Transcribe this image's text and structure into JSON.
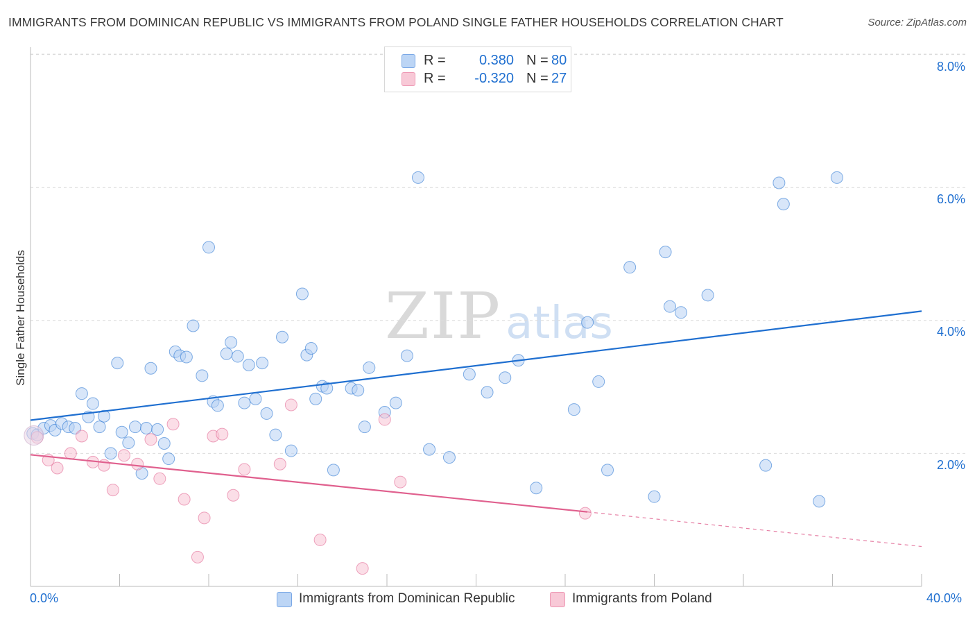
{
  "title": "IMMIGRANTS FROM DOMINICAN REPUBLIC VS IMMIGRANTS FROM POLAND SINGLE FATHER HOUSEHOLDS CORRELATION CHART",
  "source": "Source: ZipAtlas.com",
  "watermark": {
    "zip": "ZIP",
    "atlas": "atlas"
  },
  "legend_stats": {
    "dominican": {
      "r_label": "R =",
      "r_value": "0.380",
      "n_label": "N =",
      "n_value": "80",
      "color": "#aac9f2"
    },
    "poland": {
      "r_label": "R =",
      "r_value": "-0.320",
      "n_label": "N =",
      "n_value": "27",
      "color": "#f6b8cb"
    }
  },
  "bottom_legend": {
    "dominican": "Immigrants from Dominican Republic",
    "poland": "Immigrants from Poland"
  },
  "chart_data": {
    "type": "scatter",
    "title": "IMMIGRANTS FROM DOMINICAN REPUBLIC VS IMMIGRANTS FROM POLAND SINGLE FATHER HOUSEHOLDS CORRELATION CHART",
    "xlabel": "",
    "ylabel": "Single Father Households",
    "xlim": [
      0,
      40
    ],
    "ylim": [
      0,
      8.2
    ],
    "x_tick_labels": [
      "0.0%",
      "40.0%"
    ],
    "y_ticks": [
      2,
      4,
      6,
      8
    ],
    "y_tick_labels": [
      "2.0%",
      "4.0%",
      "6.0%",
      "8.0%"
    ],
    "grid": true,
    "colors": {
      "dominican": "#1f6fd0",
      "dominican_fill": "#b8d2f4",
      "poland": "#e0608e",
      "poland_fill": "#f7c3d3"
    },
    "series": [
      {
        "name": "Immigrants from Dominican Republic",
        "key": "dominican",
        "trend": {
          "x0": 0,
          "y0": 2.5,
          "x1": 40,
          "y1": 4.14
        },
        "points": [
          [
            0.1,
            2.3
          ],
          [
            0.3,
            2.28
          ],
          [
            0.6,
            2.38
          ],
          [
            0.9,
            2.42
          ],
          [
            1.1,
            2.35
          ],
          [
            1.4,
            2.45
          ],
          [
            1.7,
            2.4
          ],
          [
            2.0,
            2.38
          ],
          [
            2.3,
            2.9
          ],
          [
            2.6,
            2.55
          ],
          [
            2.8,
            2.75
          ],
          [
            3.1,
            2.4
          ],
          [
            3.3,
            2.56
          ],
          [
            3.6,
            2.0
          ],
          [
            3.9,
            3.36
          ],
          [
            4.1,
            2.32
          ],
          [
            4.4,
            2.16
          ],
          [
            4.7,
            2.4
          ],
          [
            5.0,
            1.7
          ],
          [
            5.2,
            2.38
          ],
          [
            5.4,
            3.28
          ],
          [
            5.7,
            2.36
          ],
          [
            6.0,
            2.15
          ],
          [
            6.2,
            1.92
          ],
          [
            6.5,
            3.53
          ],
          [
            6.7,
            3.47
          ],
          [
            7.0,
            3.45
          ],
          [
            7.3,
            3.92
          ],
          [
            7.7,
            3.17
          ],
          [
            8.0,
            5.1
          ],
          [
            8.2,
            2.78
          ],
          [
            8.4,
            2.72
          ],
          [
            8.8,
            3.5
          ],
          [
            9.0,
            3.67
          ],
          [
            9.3,
            3.46
          ],
          [
            9.6,
            2.76
          ],
          [
            9.8,
            3.33
          ],
          [
            10.1,
            2.82
          ],
          [
            10.4,
            3.36
          ],
          [
            10.6,
            2.6
          ],
          [
            11.0,
            2.28
          ],
          [
            11.3,
            3.75
          ],
          [
            11.7,
            2.04
          ],
          [
            12.2,
            4.4
          ],
          [
            12.4,
            3.48
          ],
          [
            12.6,
            3.58
          ],
          [
            12.8,
            2.82
          ],
          [
            13.1,
            3.01
          ],
          [
            13.3,
            2.98
          ],
          [
            13.6,
            1.75
          ],
          [
            14.4,
            2.98
          ],
          [
            14.7,
            2.95
          ],
          [
            15.0,
            2.4
          ],
          [
            15.2,
            3.29
          ],
          [
            15.9,
            2.62
          ],
          [
            16.4,
            2.76
          ],
          [
            16.9,
            3.47
          ],
          [
            17.4,
            6.15
          ],
          [
            17.9,
            2.06
          ],
          [
            18.8,
            1.94
          ],
          [
            19.7,
            3.19
          ],
          [
            20.5,
            2.92
          ],
          [
            21.3,
            3.14
          ],
          [
            21.9,
            3.4
          ],
          [
            22.7,
            1.48
          ],
          [
            24.4,
            2.66
          ],
          [
            25.0,
            3.97
          ],
          [
            25.5,
            3.08
          ],
          [
            25.9,
            1.75
          ],
          [
            26.9,
            4.8
          ],
          [
            28.0,
            1.35
          ],
          [
            28.5,
            5.03
          ],
          [
            28.7,
            4.21
          ],
          [
            29.2,
            4.12
          ],
          [
            30.4,
            4.38
          ],
          [
            33.0,
            1.82
          ],
          [
            33.6,
            6.07
          ],
          [
            33.8,
            5.75
          ],
          [
            35.4,
            1.28
          ],
          [
            36.2,
            6.15
          ]
        ]
      },
      {
        "name": "Immigrants from Poland",
        "key": "poland",
        "trend": {
          "x0": 0,
          "y0": 1.98,
          "x1": 25,
          "y1": 1.12,
          "dash_x1": 40,
          "dash_y1": 0.6
        },
        "points": [
          [
            0.3,
            2.24
          ],
          [
            0.8,
            1.9
          ],
          [
            1.2,
            1.78
          ],
          [
            1.8,
            2.0
          ],
          [
            2.3,
            2.26
          ],
          [
            2.8,
            1.87
          ],
          [
            3.3,
            1.82
          ],
          [
            3.7,
            1.45
          ],
          [
            4.2,
            1.97
          ],
          [
            4.8,
            1.84
          ],
          [
            5.4,
            2.21
          ],
          [
            5.8,
            1.62
          ],
          [
            6.4,
            2.44
          ],
          [
            6.9,
            1.31
          ],
          [
            7.5,
            0.44
          ],
          [
            7.8,
            1.03
          ],
          [
            8.2,
            2.26
          ],
          [
            8.6,
            2.29
          ],
          [
            9.1,
            1.37
          ],
          [
            9.6,
            1.76
          ],
          [
            11.2,
            1.84
          ],
          [
            11.7,
            2.73
          ],
          [
            13.0,
            0.7
          ],
          [
            14.9,
            0.27
          ],
          [
            15.9,
            2.51
          ],
          [
            16.6,
            1.57
          ],
          [
            24.9,
            1.1
          ]
        ]
      }
    ]
  }
}
